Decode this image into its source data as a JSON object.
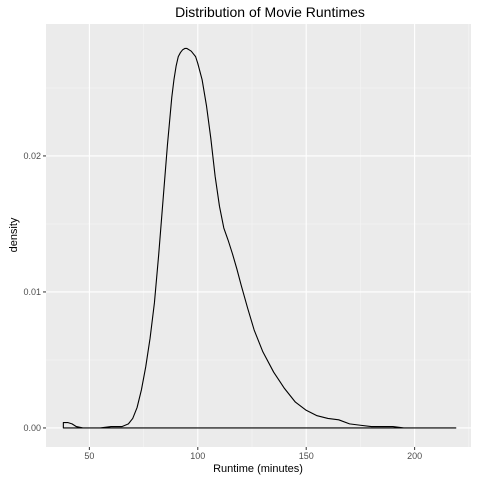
{
  "chart_data": {
    "type": "area",
    "title": "Distribution of Movie Runtimes",
    "xlabel": "Runtime (minutes)",
    "ylabel": "density",
    "xlim": [
      30,
      226
    ],
    "ylim": [
      -0.0014,
      0.0297
    ],
    "x_ticks": [
      50,
      100,
      150,
      200
    ],
    "x_tick_labels": [
      "50",
      "100",
      "150",
      "200"
    ],
    "y_ticks": [
      0.0,
      0.01,
      0.02
    ],
    "y_tick_labels": [
      "0.00",
      "0.01",
      "0.02"
    ],
    "grid": true,
    "legend": "none",
    "series": [
      {
        "x": [
          38,
          40,
          42,
          44,
          47,
          50,
          55,
          60,
          65,
          68,
          70,
          72,
          74,
          76,
          78,
          80,
          82,
          84,
          86,
          88,
          89,
          90,
          91,
          92,
          93,
          94,
          95,
          96,
          97,
          98,
          99,
          100,
          102,
          104,
          106,
          108,
          110,
          112,
          114,
          116,
          118,
          120,
          123,
          126,
          130,
          135,
          140,
          145,
          150,
          155,
          160,
          165,
          170,
          175,
          180,
          185,
          190,
          195,
          200,
          205,
          210,
          215,
          219
        ],
        "y": [
          0.0004,
          0.0004,
          0.0003,
          0.0001,
          0.0,
          0.0,
          0.0,
          0.0001,
          0.0001,
          0.0003,
          0.0007,
          0.0015,
          0.0028,
          0.0045,
          0.0066,
          0.0092,
          0.0128,
          0.0168,
          0.0208,
          0.0243,
          0.0256,
          0.0266,
          0.0273,
          0.0276,
          0.0278,
          0.0279,
          0.0279,
          0.0278,
          0.0277,
          0.0275,
          0.0273,
          0.0268,
          0.0256,
          0.0237,
          0.0213,
          0.0185,
          0.0163,
          0.0147,
          0.0138,
          0.0128,
          0.0117,
          0.0105,
          0.0088,
          0.0072,
          0.0056,
          0.0041,
          0.0029,
          0.0019,
          0.0013,
          0.0009,
          0.0007,
          0.0006,
          0.0003,
          0.0002,
          0.0001,
          0.0001,
          0.0001,
          0.0,
          0.0,
          0.0,
          0.0,
          0.0,
          0.0
        ]
      }
    ],
    "colors": {
      "panel_background": "#ebebeb",
      "grid_major": "#ffffff",
      "grid_minor": "#f5f5f5",
      "line": "#000000",
      "tick_label": "#4d4d4d"
    }
  }
}
